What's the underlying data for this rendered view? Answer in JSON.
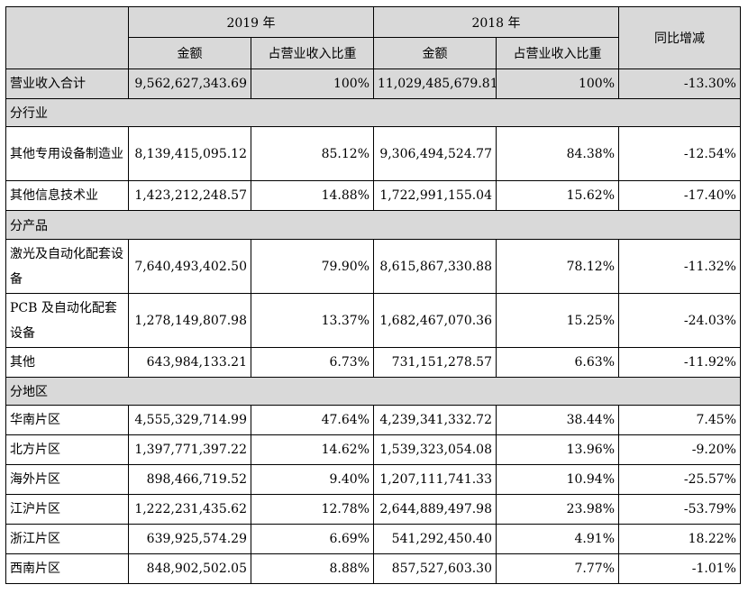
{
  "headers": {
    "year2019": "2019 年",
    "year2018": "2018 年",
    "amount": "金额",
    "share": "占营业收入比重",
    "yoy": "同比增减"
  },
  "total": {
    "label": "营业收入合计",
    "a2019": "9,562,627,343.69",
    "s2019": "100%",
    "a2018": "11,029,485,679.81",
    "s2018": "100%",
    "yoy": "-13.30%"
  },
  "sections": {
    "industry": "分行业",
    "product": "分产品",
    "region": "分地区"
  },
  "industry_rows": [
    {
      "label": "其他专用设备制造业",
      "a2019": "8,139,415,095.12",
      "s2019": "85.12%",
      "a2018": "9,306,494,524.77",
      "s2018": "84.38%",
      "yoy": "-12.54%"
    },
    {
      "label": "其他信息技术业",
      "a2019": "1,423,212,248.57",
      "s2019": "14.88%",
      "a2018": "1,722,991,155.04",
      "s2018": "15.62%",
      "yoy": "-17.40%"
    }
  ],
  "product_rows": [
    {
      "label": "激光及自动化配套设备",
      "a2019": "7,640,493,402.50",
      "s2019": "79.90%",
      "a2018": "8,615,867,330.88",
      "s2018": "78.12%",
      "yoy": "-11.32%"
    },
    {
      "label": "PCB 及自动化配套设备",
      "a2019": "1,278,149,807.98",
      "s2019": "13.37%",
      "a2018": "1,682,467,070.36",
      "s2018": "15.25%",
      "yoy": "-24.03%"
    },
    {
      "label": "其他",
      "a2019": "643,984,133.21",
      "s2019": "6.73%",
      "a2018": "731,151,278.57",
      "s2018": "6.63%",
      "yoy": "-11.92%"
    }
  ],
  "region_rows": [
    {
      "label": "华南片区",
      "a2019": "4,555,329,714.99",
      "s2019": "47.64%",
      "a2018": "4,239,341,332.72",
      "s2018": "38.44%",
      "yoy": "7.45%"
    },
    {
      "label": "北方片区",
      "a2019": "1,397,771,397.22",
      "s2019": "14.62%",
      "a2018": "1,539,323,054.08",
      "s2018": "13.96%",
      "yoy": "-9.20%"
    },
    {
      "label": "海外片区",
      "a2019": "898,466,719.52",
      "s2019": "9.40%",
      "a2018": "1,207,111,741.33",
      "s2018": "10.94%",
      "yoy": "-25.57%"
    },
    {
      "label": "江沪片区",
      "a2019": "1,222,231,435.62",
      "s2019": "12.78%",
      "a2018": "2,644,889,497.98",
      "s2018": "23.98%",
      "yoy": "-53.79%"
    },
    {
      "label": "浙江片区",
      "a2019": "639,925,574.29",
      "s2019": "6.69%",
      "a2018": "541,292,450.40",
      "s2018": "4.91%",
      "yoy": "18.22%"
    },
    {
      "label": "西南片区",
      "a2019": "848,902,502.05",
      "s2019": "8.88%",
      "a2018": "857,527,603.30",
      "s2018": "7.77%",
      "yoy": "-1.01%"
    }
  ]
}
